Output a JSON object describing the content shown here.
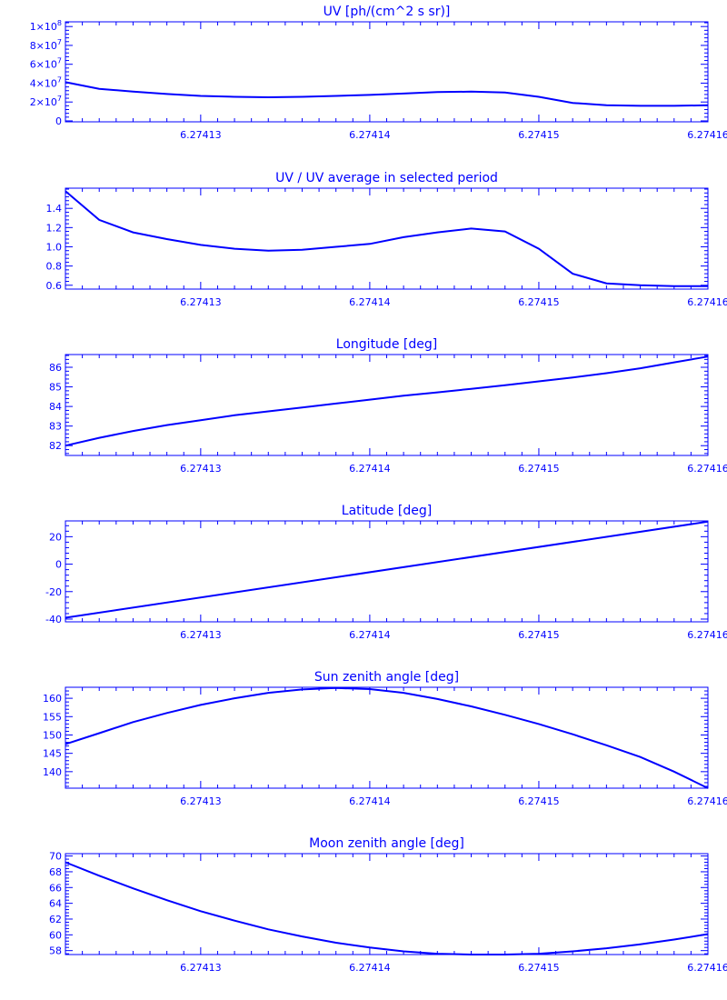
{
  "color": "#0000ff",
  "chart_data": [
    {
      "type": "line",
      "title": "UV [ph/(cm^2 s sr)]",
      "xlim": [
        6.274122,
        6.27416
      ],
      "ylim": [
        -1000000,
        105000000
      ],
      "xticks": [
        6.27413,
        6.27414,
        6.27415,
        6.27416
      ],
      "xtick_labels": [
        "6.27413",
        "6.27414",
        "6.27415",
        "6.27416"
      ],
      "yticks": [
        0,
        20000000,
        40000000,
        60000000,
        80000000,
        100000000
      ],
      "ytick_labels": [
        {
          "base": "0",
          "exp": ""
        },
        {
          "base": "2×10",
          "exp": "7"
        },
        {
          "base": "4×10",
          "exp": "7"
        },
        {
          "base": "6×10",
          "exp": "7"
        },
        {
          "base": "8×10",
          "exp": "7"
        },
        {
          "base": "1×10",
          "exp": "8"
        }
      ],
      "x": [
        6.274122,
        6.274124,
        6.274126,
        6.274128,
        6.27413,
        6.274132,
        6.274134,
        6.274136,
        6.274138,
        6.27414,
        6.274142,
        6.274144,
        6.274146,
        6.274148,
        6.27415,
        6.274152,
        6.274154,
        6.274156,
        6.274158,
        6.27416
      ],
      "y": [
        41000000,
        34000000,
        31000000,
        28500000,
        26500000,
        25500000,
        25000000,
        25500000,
        26500000,
        27500000,
        29000000,
        30500000,
        31000000,
        30000000,
        25500000,
        19000000,
        16500000,
        16000000,
        16000000,
        16500000
      ]
    },
    {
      "type": "line",
      "title": "UV / UV average in selected period",
      "xlim": [
        6.274122,
        6.27416
      ],
      "ylim": [
        0.56,
        1.61
      ],
      "xticks": [
        6.27413,
        6.27414,
        6.27415,
        6.27416
      ],
      "xtick_labels": [
        "6.27413",
        "6.27414",
        "6.27415",
        "6.27416"
      ],
      "yticks": [
        0.6,
        0.8,
        1.0,
        1.2,
        1.4
      ],
      "ytick_labels": [
        {
          "base": "0.6",
          "exp": ""
        },
        {
          "base": "0.8",
          "exp": ""
        },
        {
          "base": "1.0",
          "exp": ""
        },
        {
          "base": "1.2",
          "exp": ""
        },
        {
          "base": "1.4",
          "exp": ""
        }
      ],
      "x": [
        6.274122,
        6.274124,
        6.274126,
        6.274128,
        6.27413,
        6.274132,
        6.274134,
        6.274136,
        6.274138,
        6.27414,
        6.274142,
        6.274144,
        6.274146,
        6.274148,
        6.27415,
        6.274152,
        6.274154,
        6.274156,
        6.274158,
        6.27416
      ],
      "y": [
        1.58,
        1.28,
        1.15,
        1.08,
        1.02,
        0.98,
        0.96,
        0.97,
        1.0,
        1.03,
        1.1,
        1.15,
        1.19,
        1.16,
        0.98,
        0.72,
        0.62,
        0.6,
        0.59,
        0.59
      ]
    },
    {
      "type": "line",
      "title": "Longitude [deg]",
      "xlim": [
        6.274122,
        6.27416
      ],
      "ylim": [
        81.5,
        86.65
      ],
      "xticks": [
        6.27413,
        6.27414,
        6.27415,
        6.27416
      ],
      "xtick_labels": [
        "6.27413",
        "6.27414",
        "6.27415",
        "6.27416"
      ],
      "yticks": [
        82,
        83,
        84,
        85,
        86
      ],
      "ytick_labels": [
        {
          "base": "82",
          "exp": ""
        },
        {
          "base": "83",
          "exp": ""
        },
        {
          "base": "84",
          "exp": ""
        },
        {
          "base": "85",
          "exp": ""
        },
        {
          "base": "86",
          "exp": ""
        }
      ],
      "x": [
        6.274122,
        6.274124,
        6.274126,
        6.274128,
        6.27413,
        6.274132,
        6.274134,
        6.274136,
        6.274138,
        6.27414,
        6.274142,
        6.274144,
        6.274146,
        6.274148,
        6.27415,
        6.274152,
        6.274154,
        6.274156,
        6.274158,
        6.27416
      ],
      "y": [
        82.0,
        82.4,
        82.75,
        83.05,
        83.3,
        83.55,
        83.75,
        83.95,
        84.15,
        84.35,
        84.55,
        84.72,
        84.9,
        85.08,
        85.28,
        85.48,
        85.7,
        85.95,
        86.25,
        86.55
      ]
    },
    {
      "type": "line",
      "title": "Latitude [deg]",
      "xlim": [
        6.274122,
        6.27416
      ],
      "ylim": [
        -42,
        31.5
      ],
      "xticks": [
        6.27413,
        6.27414,
        6.27415,
        6.27416
      ],
      "xtick_labels": [
        "6.27413",
        "6.27414",
        "6.27415",
        "6.27416"
      ],
      "yticks": [
        -40,
        -20,
        0,
        20
      ],
      "ytick_labels": [
        {
          "base": "-40",
          "exp": ""
        },
        {
          "base": "-20",
          "exp": ""
        },
        {
          "base": "0",
          "exp": ""
        },
        {
          "base": "20",
          "exp": ""
        }
      ],
      "x": [
        6.274122,
        6.27416
      ],
      "y": [
        -39,
        31
      ]
    },
    {
      "type": "line",
      "title": "Sun zenith angle [deg]",
      "xlim": [
        6.274122,
        6.27416
      ],
      "ylim": [
        135.5,
        163
      ],
      "xticks": [
        6.27413,
        6.27414,
        6.27415,
        6.27416
      ],
      "xtick_labels": [
        "6.27413",
        "6.27414",
        "6.27415",
        "6.27416"
      ],
      "yticks": [
        140,
        145,
        150,
        155,
        160
      ],
      "ytick_labels": [
        {
          "base": "140",
          "exp": ""
        },
        {
          "base": "145",
          "exp": ""
        },
        {
          "base": "150",
          "exp": ""
        },
        {
          "base": "155",
          "exp": ""
        },
        {
          "base": "160",
          "exp": ""
        }
      ],
      "x": [
        6.274122,
        6.274124,
        6.274126,
        6.274128,
        6.27413,
        6.274132,
        6.274134,
        6.274136,
        6.274138,
        6.27414,
        6.274142,
        6.274144,
        6.274146,
        6.274148,
        6.27415,
        6.274152,
        6.274154,
        6.274156,
        6.274158,
        6.27416
      ],
      "y": [
        147.5,
        150.5,
        153.5,
        156.0,
        158.2,
        160.0,
        161.5,
        162.4,
        162.8,
        162.5,
        161.5,
        159.8,
        157.8,
        155.5,
        153.0,
        150.2,
        147.2,
        144.0,
        140.0,
        135.5
      ]
    },
    {
      "type": "line",
      "title": "Moon zenith angle [deg]",
      "xlim": [
        6.274122,
        6.27416
      ],
      "ylim": [
        57.5,
        70.3
      ],
      "xticks": [
        6.27413,
        6.27414,
        6.27415,
        6.27416
      ],
      "xtick_labels": [
        "6.27413",
        "6.27414",
        "6.27415",
        "6.27416"
      ],
      "yticks": [
        58,
        60,
        62,
        64,
        66,
        68,
        70
      ],
      "ytick_labels": [
        {
          "base": "58",
          "exp": ""
        },
        {
          "base": "60",
          "exp": ""
        },
        {
          "base": "62",
          "exp": ""
        },
        {
          "base": "64",
          "exp": ""
        },
        {
          "base": "66",
          "exp": ""
        },
        {
          "base": "68",
          "exp": ""
        },
        {
          "base": "70",
          "exp": ""
        }
      ],
      "x": [
        6.274122,
        6.274124,
        6.274126,
        6.274128,
        6.27413,
        6.274132,
        6.274134,
        6.274136,
        6.274138,
        6.27414,
        6.274142,
        6.274144,
        6.274146,
        6.274148,
        6.27415,
        6.274152,
        6.274154,
        6.274156,
        6.274158,
        6.27416
      ],
      "y": [
        69.2,
        67.5,
        65.9,
        64.4,
        63.0,
        61.8,
        60.7,
        59.8,
        59.0,
        58.4,
        57.9,
        57.6,
        57.5,
        57.5,
        57.6,
        57.9,
        58.3,
        58.8,
        59.4,
        60.1
      ]
    }
  ]
}
